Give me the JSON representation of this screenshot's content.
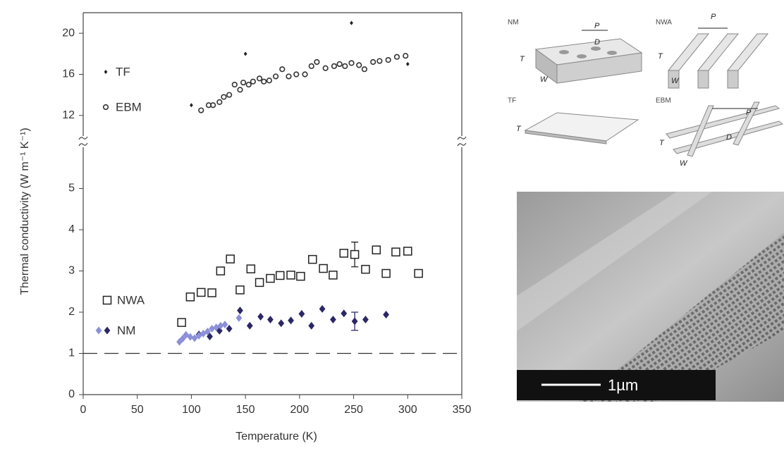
{
  "chart_data": {
    "type": "scatter",
    "x_label": "Temperature (K)",
    "y_label": "Thermal conductivity (W m⁻¹ K⁻¹)",
    "xlim": [
      0,
      350
    ],
    "xticks": [
      0,
      50,
      100,
      150,
      200,
      250,
      300,
      350
    ],
    "ylim": [
      0,
      6
    ],
    "yticks": [
      0,
      1,
      2,
      3,
      4,
      5
    ],
    "y2lim": [
      10,
      22
    ],
    "y2ticks": [
      12,
      16,
      20
    ],
    "reference_line": 1,
    "series": [
      {
        "name": "TF",
        "axis": "y2",
        "marker": "diamond",
        "color": "#222222",
        "x": [
          100,
          150,
          248,
          300
        ],
        "values": [
          13.0,
          18.0,
          21.0,
          17.0
        ]
      },
      {
        "name": "EBM",
        "axis": "y2",
        "marker": "circle",
        "color": "#333333",
        "x": [
          109,
          116,
          120,
          126,
          130,
          135,
          140,
          145,
          148,
          153,
          157,
          163,
          167,
          172,
          178,
          184,
          190,
          197,
          205,
          211,
          216,
          224,
          232,
          237,
          242,
          248,
          255,
          260,
          268,
          274,
          282,
          290,
          298
        ],
        "values": [
          12.5,
          13.0,
          13.0,
          13.3,
          13.8,
          14.0,
          15.0,
          14.5,
          15.2,
          15.0,
          15.3,
          15.6,
          15.3,
          15.4,
          15.8,
          16.5,
          15.8,
          16.0,
          16.0,
          16.8,
          17.2,
          16.6,
          16.8,
          17.0,
          16.8,
          17.1,
          16.9,
          16.5,
          17.2,
          17.3,
          17.4,
          17.7,
          17.8
        ]
      },
      {
        "name": "NWA",
        "marker": "square",
        "color": "#222222",
        "x": [
          91,
          99,
          109,
          119,
          127,
          136,
          145,
          155,
          163,
          173,
          182,
          192,
          201,
          212,
          222,
          231,
          241,
          251,
          261,
          271,
          280,
          289,
          300,
          310
        ],
        "values": [
          1.75,
          2.37,
          2.48,
          2.47,
          3.0,
          3.29,
          2.54,
          3.05,
          2.72,
          2.82,
          2.89,
          2.9,
          2.87,
          3.28,
          3.06,
          2.9,
          3.43,
          3.4,
          3.04,
          3.51,
          2.94,
          3.46,
          3.48,
          2.94
        ],
        "errors": [
          null,
          null,
          null,
          null,
          null,
          null,
          null,
          null,
          null,
          null,
          null,
          null,
          null,
          null,
          null,
          null,
          null,
          0.3,
          null,
          null,
          null,
          null,
          null,
          null
        ]
      },
      {
        "name": "NM",
        "marker": "diamond",
        "color": "#2b2766",
        "x": [
          107,
          117,
          126,
          135,
          145,
          154,
          164,
          173,
          183,
          192,
          202,
          211,
          221,
          231,
          241,
          251,
          261,
          280
        ],
        "values": [
          1.46,
          1.41,
          1.55,
          1.6,
          2.04,
          1.67,
          1.89,
          1.82,
          1.73,
          1.8,
          1.96,
          1.67,
          2.08,
          1.82,
          1.97,
          1.78,
          1.82,
          1.94
        ],
        "errors": [
          null,
          null,
          null,
          null,
          null,
          null,
          null,
          null,
          null,
          null,
          null,
          null,
          null,
          null,
          null,
          0.22,
          null,
          null
        ]
      },
      {
        "marker": "diamond",
        "color": "#8c90d8",
        "x": [
          89,
          92,
          95,
          99,
          103,
          107,
          111,
          115,
          119,
          123,
          127,
          131,
          144
        ],
        "values": [
          1.28,
          1.36,
          1.45,
          1.4,
          1.37,
          1.43,
          1.48,
          1.53,
          1.6,
          1.63,
          1.67,
          1.7,
          1.86
        ]
      }
    ]
  },
  "schematics": [
    {
      "label": "NM",
      "dimensions": [
        "P",
        "D",
        "T",
        "W"
      ]
    },
    {
      "label": "NWA",
      "dimensions": [
        "P",
        "T",
        "W"
      ]
    },
    {
      "label": "TF",
      "dimensions": [
        "T"
      ]
    },
    {
      "label": "EBM",
      "dimensions": [
        "P",
        "D",
        "T",
        "W"
      ]
    }
  ],
  "sem_image": {
    "scale_bar": "1µm"
  }
}
